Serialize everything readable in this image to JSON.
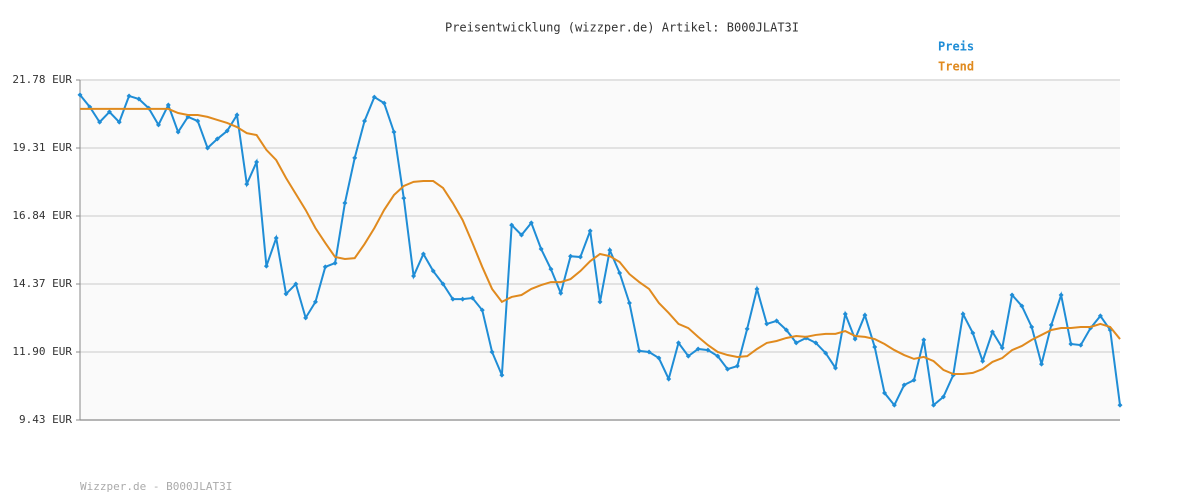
{
  "chart_data": {
    "type": "line",
    "title": "Preisentwicklung (wizzper.de) Artikel: B000JLAT3I",
    "footer": "Wizzper.de - B000JLAT3I",
    "ylim": [
      9.43,
      21.78
    ],
    "yticks": [
      {
        "value": 9.43,
        "label": "9.43 EUR"
      },
      {
        "value": 11.9,
        "label": "11.90 EUR"
      },
      {
        "value": 14.37,
        "label": "14.37 EUR"
      },
      {
        "value": 16.84,
        "label": "16.84 EUR"
      },
      {
        "value": 19.31,
        "label": "19.31 EUR"
      },
      {
        "value": 21.78,
        "label": "21.78 EUR"
      }
    ],
    "grid": true,
    "legend": "top-right",
    "series": [
      {
        "name": "Preis",
        "color": "#1f8dd6",
        "markers": true,
        "values": [
          21.24,
          20.8,
          20.25,
          20.62,
          20.25,
          21.2,
          21.09,
          20.76,
          20.15,
          20.87,
          19.89,
          20.44,
          20.29,
          19.31,
          19.64,
          19.93,
          20.51,
          18.0,
          18.8,
          15.02,
          16.04,
          14.01,
          14.37,
          13.14,
          13.72,
          14.99,
          15.13,
          17.31,
          18.95,
          20.29,
          21.16,
          20.94,
          19.89,
          17.49,
          14.66,
          15.46,
          14.84,
          14.37,
          13.82,
          13.82,
          13.86,
          13.42,
          11.9,
          11.06,
          16.51,
          16.15,
          16.59,
          15.64,
          14.91,
          14.04,
          15.38,
          15.35,
          16.3,
          13.72,
          15.6,
          14.77,
          13.68,
          11.94,
          11.9,
          11.68,
          10.92,
          12.23,
          11.75,
          12.01,
          11.97,
          11.75,
          11.28,
          11.39,
          12.74,
          14.19,
          12.92,
          13.03,
          12.7,
          12.23,
          12.41,
          12.23,
          11.86,
          11.32,
          13.28,
          12.37,
          13.24,
          12.08,
          10.41,
          9.97,
          10.7,
          10.88,
          12.34,
          9.97,
          10.27,
          11.06,
          13.28,
          12.59,
          11.57,
          12.63,
          12.05,
          13.97,
          13.57,
          12.81,
          11.46,
          12.88,
          13.97,
          12.19,
          12.15,
          12.77,
          13.21,
          12.7,
          9.97
        ]
      },
      {
        "name": "Trend",
        "color": "#e08a1e",
        "markers": false,
        "values": [
          20.73,
          20.73,
          20.73,
          20.73,
          20.73,
          20.73,
          20.73,
          20.73,
          20.73,
          20.73,
          20.58,
          20.51,
          20.51,
          20.44,
          20.33,
          20.22,
          20.07,
          19.85,
          19.78,
          19.24,
          18.87,
          18.22,
          17.64,
          17.06,
          16.4,
          15.86,
          15.35,
          15.28,
          15.31,
          15.82,
          16.4,
          17.06,
          17.6,
          17.93,
          18.08,
          18.11,
          18.11,
          17.86,
          17.31,
          16.69,
          15.86,
          14.99,
          14.19,
          13.72,
          13.9,
          13.97,
          14.19,
          14.33,
          14.44,
          14.44,
          14.55,
          14.84,
          15.2,
          15.46,
          15.38,
          15.17,
          14.73,
          14.44,
          14.19,
          13.68,
          13.32,
          12.92,
          12.77,
          12.45,
          12.15,
          11.9,
          11.79,
          11.72,
          11.75,
          12.01,
          12.23,
          12.3,
          12.41,
          12.48,
          12.45,
          12.52,
          12.56,
          12.56,
          12.66,
          12.48,
          12.45,
          12.37,
          12.19,
          11.97,
          11.79,
          11.65,
          11.72,
          11.57,
          11.25,
          11.1,
          11.1,
          11.14,
          11.28,
          11.54,
          11.68,
          11.97,
          12.12,
          12.34,
          12.52,
          12.7,
          12.77,
          12.77,
          12.81,
          12.81,
          12.92,
          12.81,
          12.37
        ]
      }
    ]
  }
}
